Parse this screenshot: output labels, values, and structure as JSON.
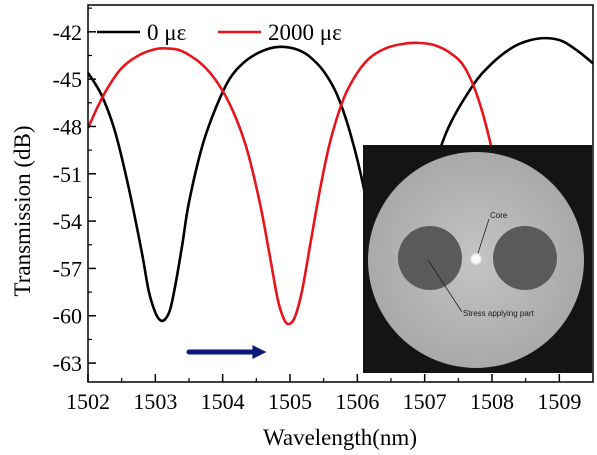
{
  "chart_data": {
    "type": "line",
    "xlabel": "Wavelength(nm)",
    "ylabel": "Transmission (dB)",
    "xlim": [
      1502,
      1509.5
    ],
    "ylim": [
      -64.2,
      -40.3
    ],
    "xticks": [
      1502,
      1503,
      1504,
      1505,
      1506,
      1507,
      1508,
      1509
    ],
    "yticks": [
      -42,
      -45,
      -48,
      -51,
      -54,
      -57,
      -60,
      -63
    ],
    "legend_position": "top-left",
    "series": [
      {
        "name": "0 με",
        "color": "#000000",
        "x": [
          1502.0,
          1502.2,
          1502.4,
          1502.6,
          1502.8,
          1502.9,
          1503.0,
          1503.08,
          1503.15,
          1503.22,
          1503.3,
          1503.4,
          1503.5,
          1503.7,
          1503.9,
          1504.1,
          1504.3,
          1504.5,
          1504.7,
          1504.85,
          1505.0,
          1505.15,
          1505.3,
          1505.5,
          1505.7,
          1505.9,
          1506.1,
          1506.3,
          1506.55,
          1506.75,
          1507.0,
          1507.3,
          1507.7,
          1508.0,
          1508.3,
          1508.55,
          1508.8,
          1509.05,
          1509.3,
          1509.5
        ],
        "y": [
          -44.6,
          -46.0,
          -48.3,
          -51.8,
          -56.0,
          -58.4,
          -59.8,
          -60.3,
          -60.2,
          -59.6,
          -58.0,
          -55.5,
          -52.8,
          -49.2,
          -46.8,
          -45.0,
          -44.0,
          -43.4,
          -43.05,
          -42.95,
          -43.0,
          -43.2,
          -43.6,
          -44.5,
          -46.0,
          -48.5,
          -52.0,
          -57.0,
          -60.0,
          -58.5,
          -53.0,
          -48.6,
          -45.5,
          -44.0,
          -43.0,
          -42.55,
          -42.4,
          -42.6,
          -43.3,
          -44.0
        ]
      },
      {
        "name": "2000 με",
        "color": "#e8141c",
        "x": [
          1502.0,
          1502.15,
          1502.3,
          1502.5,
          1502.75,
          1503.0,
          1503.15,
          1503.35,
          1503.55,
          1503.75,
          1503.95,
          1504.15,
          1504.35,
          1504.55,
          1504.7,
          1504.82,
          1504.92,
          1505.0,
          1505.08,
          1505.18,
          1505.3,
          1505.45,
          1505.6,
          1505.8,
          1506.0,
          1506.2,
          1506.45,
          1506.7,
          1506.9,
          1507.15,
          1507.4,
          1507.6,
          1507.8,
          1508.0,
          1508.15,
          1508.3
        ],
        "y": [
          -48.1,
          -46.7,
          -45.5,
          -44.3,
          -43.5,
          -43.1,
          -43.05,
          -43.15,
          -43.6,
          -44.3,
          -45.4,
          -47.0,
          -49.3,
          -52.8,
          -56.2,
          -59.0,
          -60.3,
          -60.5,
          -60.0,
          -58.4,
          -55.5,
          -51.9,
          -48.9,
          -46.2,
          -44.6,
          -43.6,
          -43.0,
          -42.75,
          -42.7,
          -42.85,
          -43.4,
          -44.3,
          -46.3,
          -49.5,
          -53.0,
          -57.0
        ]
      }
    ],
    "annotations": [
      {
        "type": "arrow",
        "color": "#0b1a7a",
        "from": [
          1503.5,
          -62.3
        ],
        "to": [
          1504.65,
          -62.3
        ]
      }
    ],
    "inset": {
      "description_labels": [
        "Core",
        "Stress applying part"
      ],
      "background": "#141414",
      "cladding": "#b7b7b7",
      "stress_rods": "#5a5a5a",
      "core": "#ffffff"
    }
  }
}
